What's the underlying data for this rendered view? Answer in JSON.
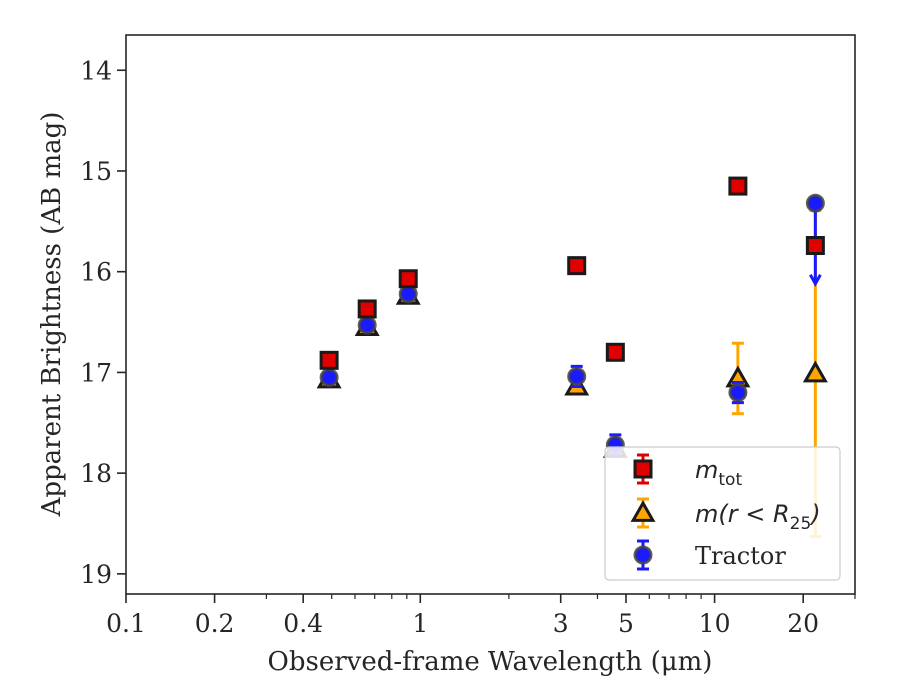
{
  "chart_data": {
    "type": "scatter",
    "title": "",
    "xlabel": "Observed-frame Wavelength (μm)",
    "ylabel": "Apparent Brightness (AB mag)",
    "xscale": "log",
    "xlim": [
      0.1,
      30
    ],
    "ylim": [
      19.2,
      13.65
    ],
    "y_inverted": true,
    "xticks": [
      0.1,
      0.2,
      0.4,
      1,
      3,
      5,
      10,
      20
    ],
    "xtick_labels": [
      "0.1",
      "0.2",
      "0.4",
      "1",
      "3",
      "5",
      "10",
      "20"
    ],
    "yticks": [
      14,
      15,
      16,
      17,
      18,
      19
    ],
    "ytick_labels": [
      "14",
      "15",
      "16",
      "17",
      "18",
      "19"
    ],
    "grid": false,
    "legend_position": "lower-right",
    "series": [
      {
        "key": "mtot",
        "name": "m_tot",
        "legend_main": "m",
        "legend_sub": "tot",
        "marker": "square",
        "color": "#e00000",
        "edge_color": "#1a1a1a",
        "points": [
          {
            "x": 0.49,
            "y": 16.88,
            "err": 0.05
          },
          {
            "x": 0.66,
            "y": 16.37,
            "err": 0.05
          },
          {
            "x": 0.91,
            "y": 16.07,
            "err": 0.05
          },
          {
            "x": 3.4,
            "y": 15.94,
            "err": 0.05
          },
          {
            "x": 4.6,
            "y": 16.8,
            "err": 0.05
          },
          {
            "x": 12.0,
            "y": 15.15,
            "err": 0.05
          },
          {
            "x": 22.0,
            "y": 15.74,
            "err": 0.05
          }
        ]
      },
      {
        "key": "mr25",
        "name": "m(r < R_25)",
        "legend_main": "m(r < R",
        "legend_sub": "25",
        "legend_tail": ")",
        "marker": "triangle",
        "color": "#ffa500",
        "edge_color": "#1a1a1a",
        "points": [
          {
            "x": 0.49,
            "y": 17.07,
            "err": 0.03
          },
          {
            "x": 0.66,
            "y": 16.55,
            "err": 0.03
          },
          {
            "x": 0.91,
            "y": 16.24,
            "err": 0.03
          },
          {
            "x": 3.4,
            "y": 17.14,
            "err": 0.03
          },
          {
            "x": 4.6,
            "y": 17.76,
            "err": 0.03
          },
          {
            "x": 12.0,
            "y": 17.06,
            "err": 0.35
          },
          {
            "x": 22.0,
            "y": 17.01,
            "err": 1.62
          }
        ]
      },
      {
        "key": "tractor",
        "name": "Tractor",
        "legend_main": "Tractor",
        "marker": "circle",
        "color": "#1a1aff",
        "edge_color": "#444444",
        "points": [
          {
            "x": 0.49,
            "y": 17.05,
            "err": 0.02
          },
          {
            "x": 0.66,
            "y": 16.53,
            "err": 0.02
          },
          {
            "x": 0.91,
            "y": 16.22,
            "err": 0.02
          },
          {
            "x": 3.4,
            "y": 17.04,
            "err": 0.1
          },
          {
            "x": 4.6,
            "y": 17.72,
            "err": 0.1
          },
          {
            "x": 12.0,
            "y": 17.2,
            "err": 0.1
          },
          {
            "x": 22.0,
            "y": 15.32,
            "err": 0.0,
            "upper_limit": true,
            "arrow_to": 16.12
          }
        ]
      }
    ]
  }
}
